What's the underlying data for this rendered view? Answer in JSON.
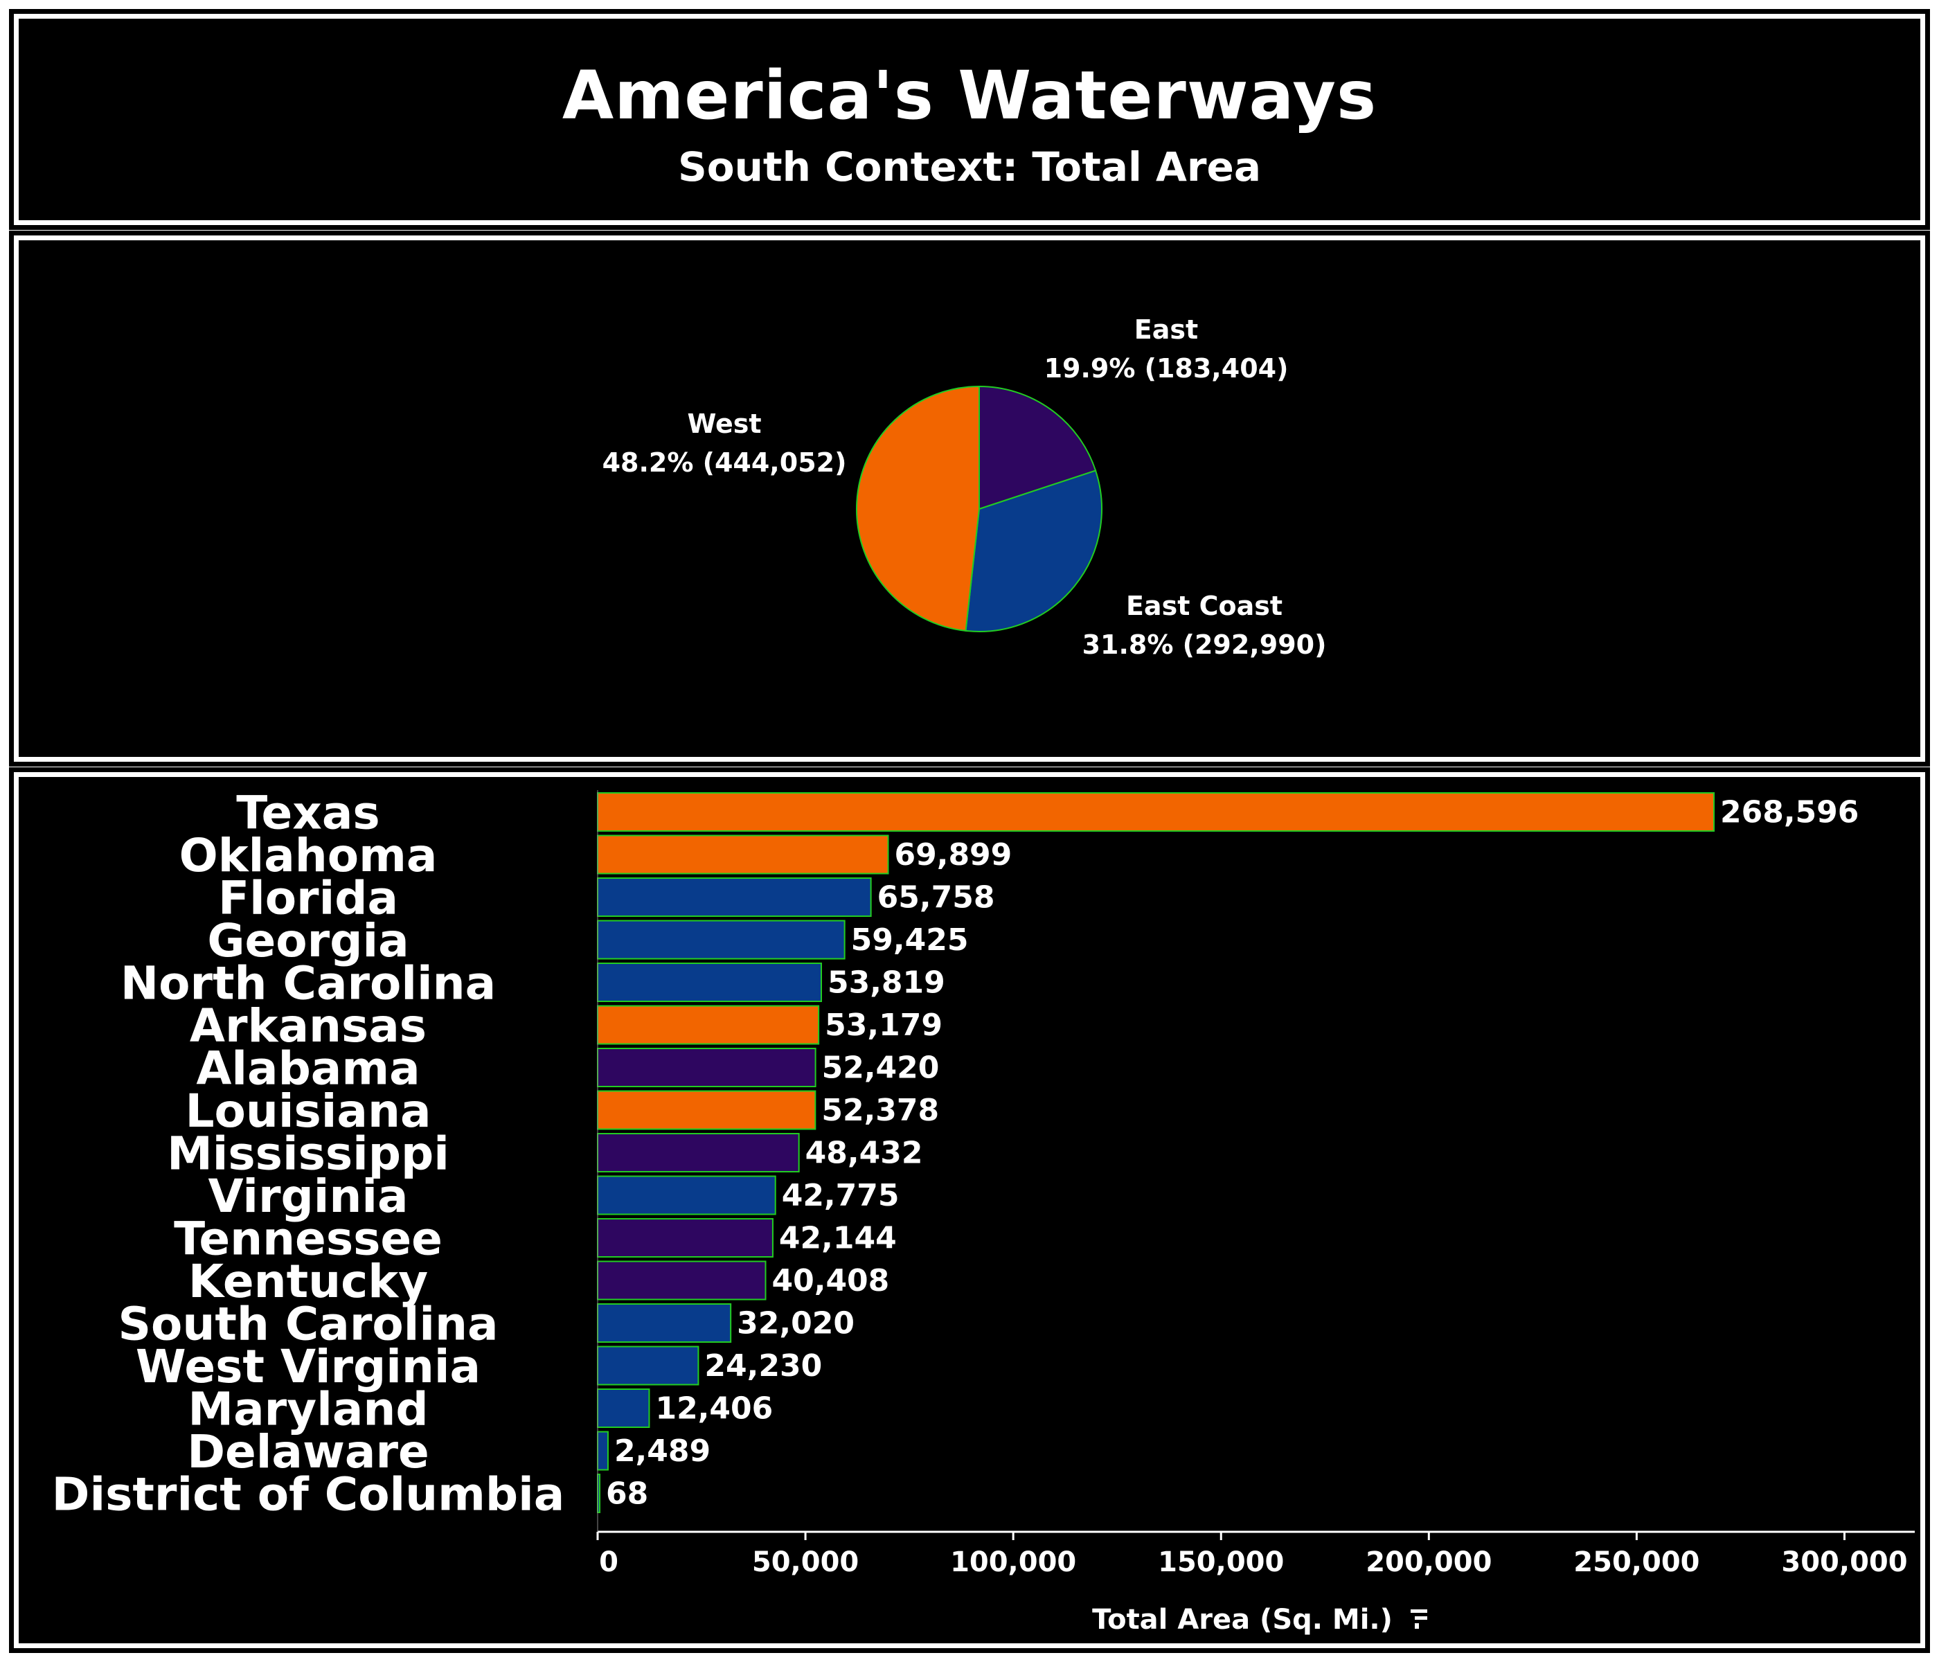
{
  "header": {
    "title": "America's Waterways",
    "subtitle": "South Context: Total Area"
  },
  "colors": {
    "West": "#f26500",
    "East": "#2e0660",
    "East Coast": "#083c8c",
    "outline": "#22cc22"
  },
  "chart_data": [
    {
      "type": "pie",
      "title": "",
      "slices": [
        {
          "label": "East",
          "percent_label": "19.9% (183,404)",
          "value": 183404,
          "region": "East"
        },
        {
          "label": "East Coast",
          "percent_label": "31.8% (292,990)",
          "value": 292990,
          "region": "East Coast"
        },
        {
          "label": "West",
          "percent_label": "48.2% (444,052)",
          "value": 444052,
          "region": "West"
        }
      ]
    },
    {
      "type": "bar",
      "orientation": "horizontal",
      "xlabel": "Total Area (Sq. Mi.)",
      "xlim": [
        0,
        320000
      ],
      "x_ticks": [
        0,
        50000,
        100000,
        150000,
        200000,
        250000,
        300000
      ],
      "x_tick_labels": [
        "0",
        "50,000",
        "100,000",
        "150,000",
        "200,000",
        "250,000",
        "300,000"
      ],
      "grid": false,
      "categories": [
        "Texas",
        "Oklahoma",
        "Florida",
        "Georgia",
        "North Carolina",
        "Arkansas",
        "Alabama",
        "Louisiana",
        "Mississippi",
        "Virginia",
        "Tennessee",
        "Kentucky",
        "South Carolina",
        "West Virginia",
        "Maryland",
        "Delaware",
        "District of Columbia"
      ],
      "values": [
        268596,
        69899,
        65758,
        59425,
        53819,
        53179,
        52420,
        52378,
        48432,
        42775,
        42144,
        40408,
        32020,
        24230,
        12406,
        2489,
        68
      ],
      "value_labels": [
        "268,596",
        "69,899",
        "65,758",
        "59,425",
        "53,819",
        "53,179",
        "52,420",
        "52,378",
        "48,432",
        "42,775",
        "42,144",
        "40,408",
        "32,020",
        "24,230",
        "12,406",
        "2,489",
        "68"
      ],
      "regions": [
        "West",
        "West",
        "East Coast",
        "East Coast",
        "East Coast",
        "West",
        "East",
        "West",
        "East",
        "East Coast",
        "East",
        "East",
        "East Coast",
        "East Coast",
        "East Coast",
        "East Coast",
        "East Coast"
      ]
    }
  ]
}
